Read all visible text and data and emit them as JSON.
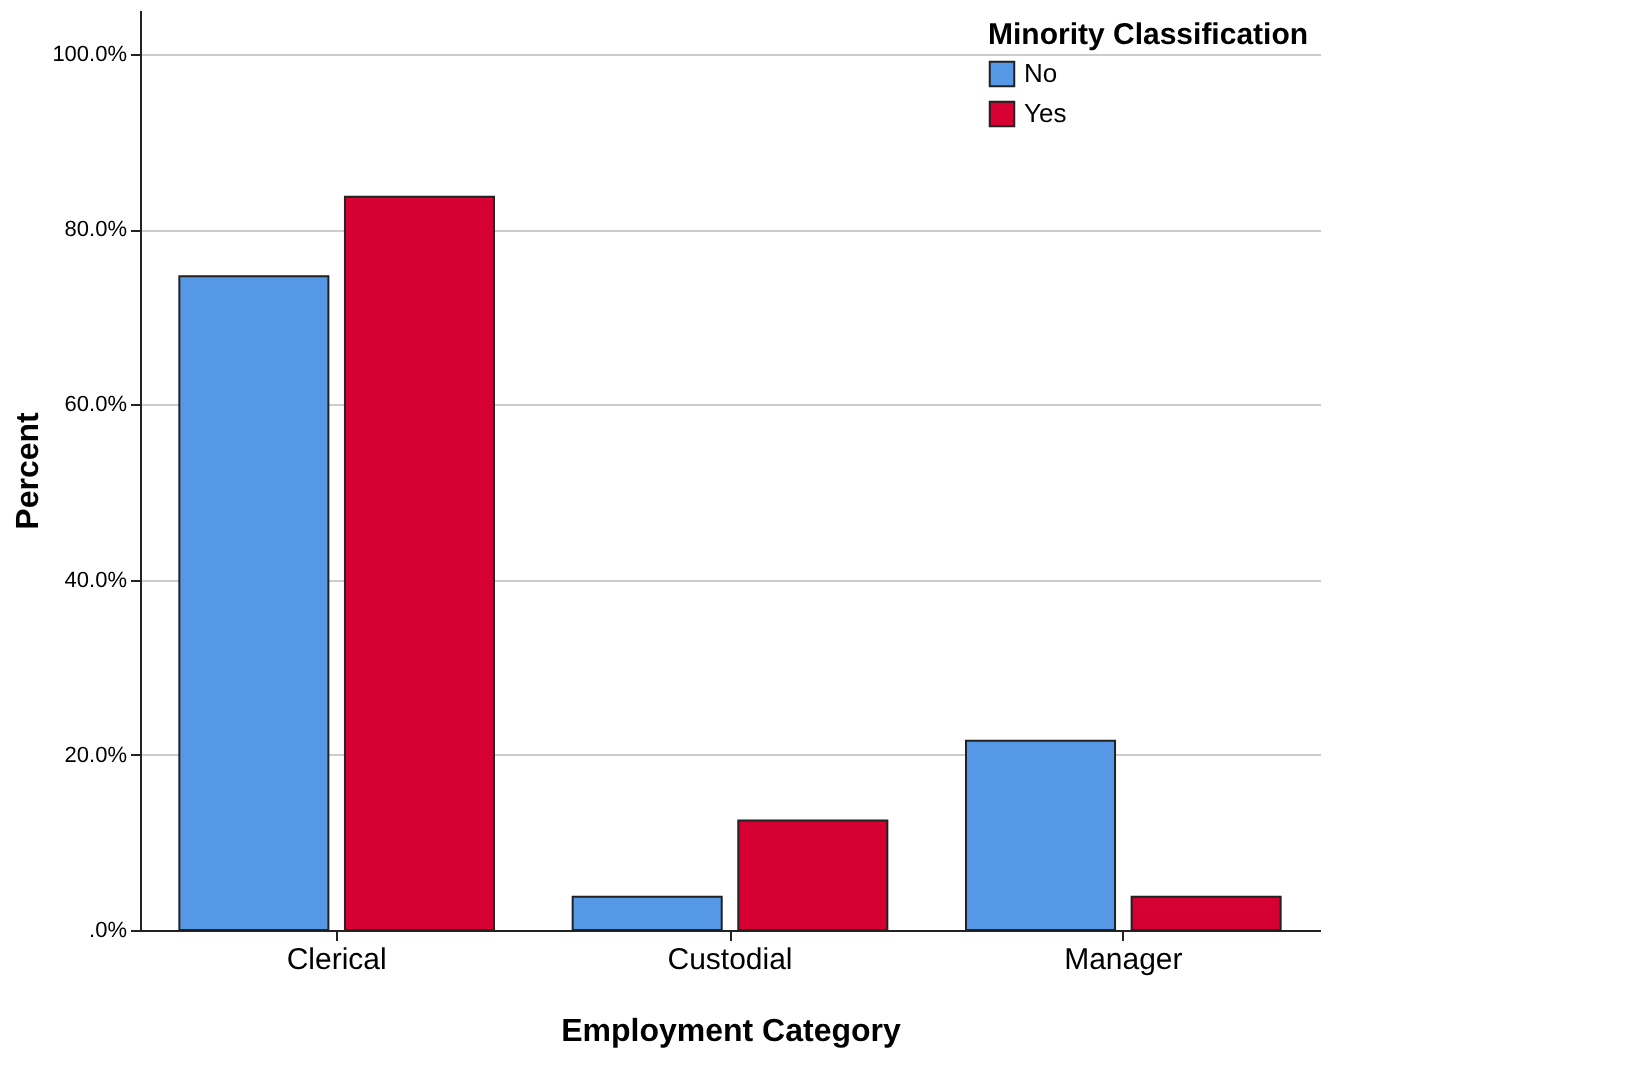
{
  "chart_data": {
    "type": "bar",
    "xlabel": "Employment Category",
    "ylabel": "Percent",
    "legend_title": "Minority Classification",
    "categories": [
      "Clerical",
      "Custodial",
      "Manager"
    ],
    "series": [
      {
        "name": "No",
        "color": "#5599e6",
        "values": [
          74.6,
          3.8,
          21.6
        ]
      },
      {
        "name": "Yes",
        "color": "#d60032",
        "values": [
          83.7,
          12.5,
          3.8
        ]
      }
    ],
    "ylim": [
      0,
      105
    ],
    "yticks": [
      {
        "value": 0,
        "label": ".0%"
      },
      {
        "value": 20,
        "label": "20.0%"
      },
      {
        "value": 40,
        "label": "40.0%"
      },
      {
        "value": 60,
        "label": "60.0%"
      },
      {
        "value": 80,
        "label": "80.0%"
      },
      {
        "value": 100,
        "label": "100.0%"
      }
    ],
    "grid": "y",
    "legend": "top right"
  }
}
